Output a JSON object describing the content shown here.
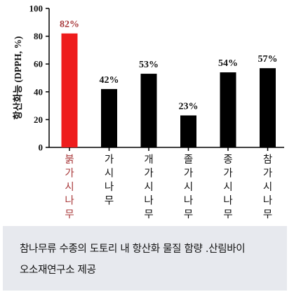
{
  "chart_data": {
    "type": "bar",
    "ylabel": "항산화능 (DPPH, %)",
    "ylim": [
      0,
      100
    ],
    "yticks": [
      0,
      20,
      40,
      60,
      80,
      100
    ],
    "grid": false,
    "categories": [
      "붉가시나무",
      "가시나무",
      "개가시나무",
      "졸가시나무",
      "종가시나무",
      "참가시나무"
    ],
    "values": [
      82,
      42,
      53,
      23,
      54,
      57
    ],
    "data_labels": [
      "82%",
      "42%",
      "53%",
      "23%",
      "54%",
      "57%"
    ],
    "bar_colors": [
      "#ee1c1c",
      "#000000",
      "#000000",
      "#000000",
      "#000000",
      "#000000"
    ],
    "label_colors": [
      "#a8383a",
      "#111111",
      "#111111",
      "#111111",
      "#111111",
      "#111111"
    ]
  },
  "caption": {
    "line1": "참나무류 수종의 도토리 내 항산화 물질 함량 .산림바이",
    "line2": "오소재연구소 제공"
  }
}
